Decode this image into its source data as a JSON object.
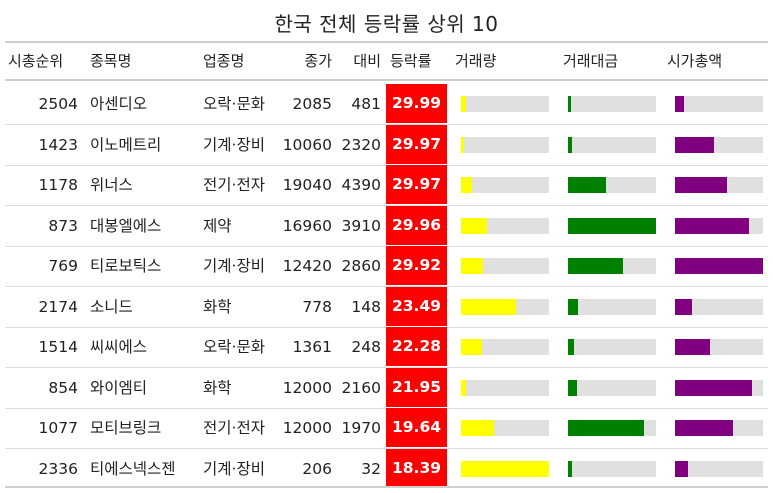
{
  "chart_data": {
    "type": "table",
    "title": "한국 전체 등락률 상위 10",
    "columns": [
      "시총순위",
      "종목명",
      "업종명",
      "종가",
      "대비",
      "등락률",
      "거래량",
      "거래대금",
      "시가총액"
    ],
    "rows": [
      {
        "rank": "2504",
        "name": "아센디오",
        "sector": "오락·문화",
        "close": "2085",
        "change": "481",
        "rate": "29.99",
        "volume_frac": 0.06,
        "amount_frac": 0.03,
        "cap_frac": 0.1
      },
      {
        "rank": "1423",
        "name": "이노메트리",
        "sector": "기계·장비",
        "close": "10060",
        "change": "2320",
        "rate": "29.97",
        "volume_frac": 0.03,
        "amount_frac": 0.05,
        "cap_frac": 0.44
      },
      {
        "rank": "1178",
        "name": "위너스",
        "sector": "전기·전자",
        "close": "19040",
        "change": "4390",
        "rate": "29.97",
        "volume_frac": 0.12,
        "amount_frac": 0.43,
        "cap_frac": 0.59
      },
      {
        "rank": "873",
        "name": "대봉엘에스",
        "sector": "제약",
        "close": "16960",
        "change": "3910",
        "rate": "29.96",
        "volume_frac": 0.3,
        "amount_frac": 1.0,
        "cap_frac": 0.84
      },
      {
        "rank": "769",
        "name": "티로보틱스",
        "sector": "기계·장비",
        "close": "12420",
        "change": "2860",
        "rate": "29.92",
        "volume_frac": 0.25,
        "amount_frac": 0.63,
        "cap_frac": 1.0
      },
      {
        "rank": "2174",
        "name": "소니드",
        "sector": "화학",
        "close": "778",
        "change": "148",
        "rate": "23.49",
        "volume_frac": 0.63,
        "amount_frac": 0.11,
        "cap_frac": 0.19
      },
      {
        "rank": "1514",
        "name": "씨씨에스",
        "sector": "오락·문화",
        "close": "1361",
        "change": "248",
        "rate": "22.28",
        "volume_frac": 0.24,
        "amount_frac": 0.07,
        "cap_frac": 0.4
      },
      {
        "rank": "854",
        "name": "와이엠티",
        "sector": "화학",
        "close": "12000",
        "change": "2160",
        "rate": "21.95",
        "volume_frac": 0.06,
        "amount_frac": 0.1,
        "cap_frac": 0.88
      },
      {
        "rank": "1077",
        "name": "모티브링크",
        "sector": "전기·전자",
        "close": "12000",
        "change": "1970",
        "rate": "19.64",
        "volume_frac": 0.37,
        "amount_frac": 0.86,
        "cap_frac": 0.66
      },
      {
        "rank": "2336",
        "name": "티에스넥스젠",
        "sector": "기계·장비",
        "close": "206",
        "change": "32",
        "rate": "18.39",
        "volume_frac": 1.0,
        "amount_frac": 0.05,
        "cap_frac": 0.15
      }
    ],
    "colors": {
      "rate_bg": "#ff0000",
      "volume": "#ffff00",
      "amount": "#008000",
      "cap": "#800080",
      "track": "#e0e0e0"
    }
  }
}
